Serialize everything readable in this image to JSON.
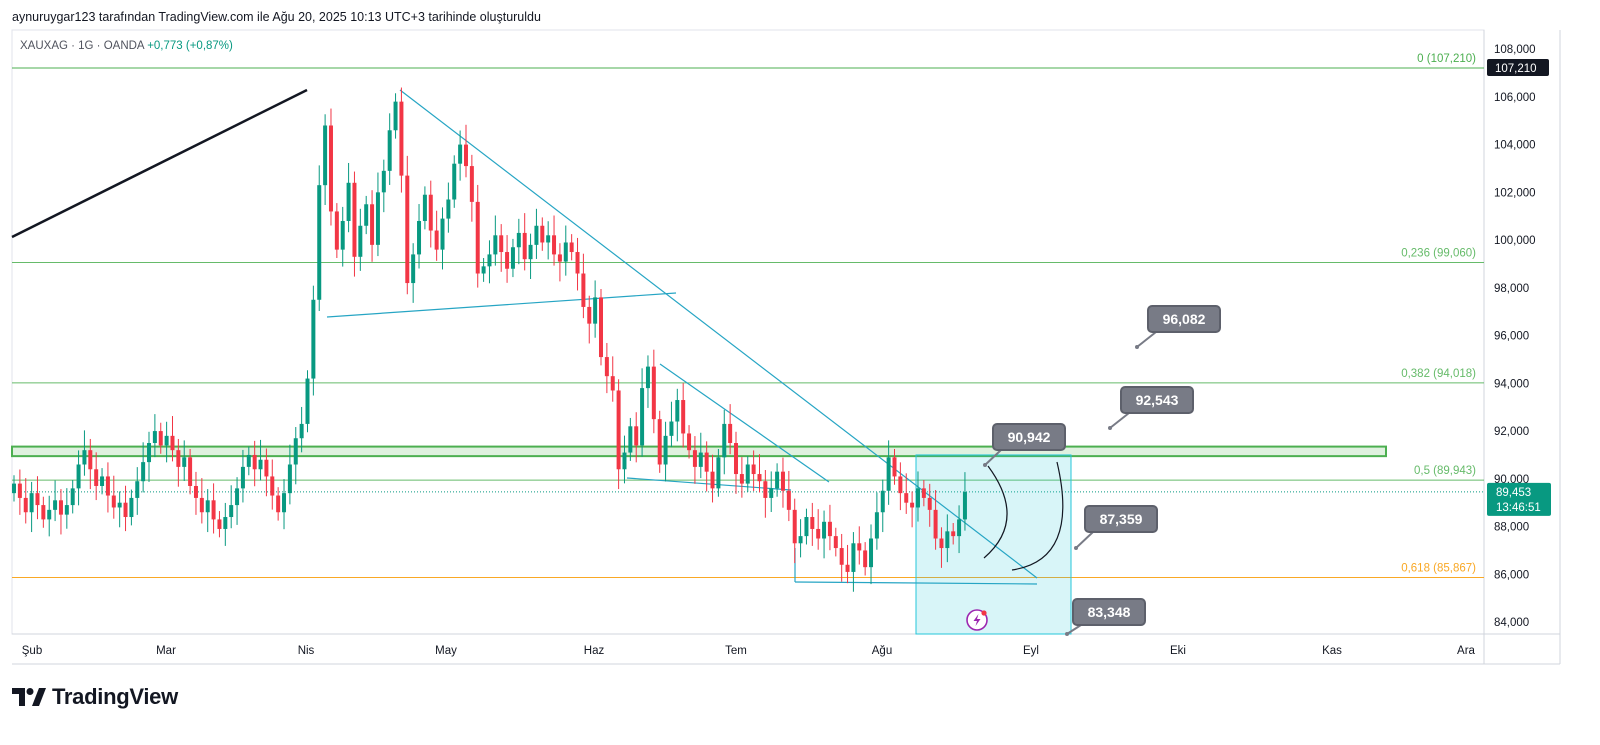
{
  "header": {
    "attribution": "aynuruygar123 tarafından TradingView.com ile Ağu 20, 2025 10:13 UTC+3 tarihinde oluşturuldu"
  },
  "legend": {
    "symbol": "XAUXAG · 1G · OANDA",
    "change": "+0,773 (+0,87%)"
  },
  "brand": {
    "logo_text": "TradingView",
    "logo_glyph": "TV-mark-icon"
  },
  "price_scale": {
    "ticks": [
      "108,000",
      "106,000",
      "104,000",
      "102,000",
      "100,000",
      "98,000",
      "96,000",
      "94,000",
      "92,000",
      "90,000",
      "88,000",
      "86,000",
      "84,000"
    ],
    "current_price": "89,453",
    "countdown": "13:46:51",
    "top_label": "107,210"
  },
  "time_axis": {
    "labels": [
      "Şub",
      "Mar",
      "Nis",
      "May",
      "Haz",
      "Tem",
      "Ağu",
      "Eyl",
      "Eki",
      "Kas",
      "Ara"
    ]
  },
  "fib_levels": [
    {
      "label": "0 (107,210)",
      "value": 107.21,
      "color": "#4caf50"
    },
    {
      "label": "0,236 (99,060)",
      "value": 99.06,
      "color": "#66bb6a"
    },
    {
      "label": "0,382 (94,018)",
      "value": 94.018,
      "color": "#66bb6a"
    },
    {
      "label": "0,5 (89,943)",
      "value": 89.943,
      "color": "#66bb6a"
    },
    {
      "label": "0,618 (85,867)",
      "value": 85.867,
      "color": "#f9a825"
    }
  ],
  "callouts": [
    {
      "label": "96,082",
      "value": 96.082
    },
    {
      "label": "92,543",
      "value": 92.543
    },
    {
      "label": "90,942",
      "value": 90.942
    },
    {
      "label": "87,359",
      "value": 87.359
    },
    {
      "label": "83,348",
      "value": 83.348
    }
  ],
  "colors": {
    "up": "#089981",
    "down": "#f23645",
    "trendline": "#26a5c4",
    "support_zone": "#4caf50",
    "projection_box": "#26c6da"
  },
  "chart_data": {
    "type": "candlestick",
    "symbol": "XAUXAG",
    "ylim": [
      83.5,
      108.8
    ],
    "price_scale_position": "right",
    "x_range": [
      "Şub",
      "Ara"
    ],
    "closes": [
      89.8,
      89.2,
      88.6,
      89.4,
      88.9,
      88.3,
      88.7,
      89.1,
      88.5,
      88.9,
      89.6,
      90.6,
      91.2,
      90.4,
      89.7,
      90.1,
      89.3,
      88.8,
      89.0,
      88.4,
      89.2,
      89.9,
      90.7,
      91.5,
      92.0,
      91.4,
      91.8,
      91.2,
      90.5,
      90.9,
      89.7,
      89.2,
      88.6,
      89.1,
      88.3,
      87.9,
      88.4,
      88.9,
      89.6,
      90.5,
      91.0,
      90.4,
      90.8,
      90.1,
      89.3,
      88.6,
      89.4,
      90.6,
      91.7,
      92.3,
      94.2,
      97.5,
      102.3,
      104.8,
      101.2,
      99.6,
      100.8,
      102.4,
      99.3,
      100.6,
      101.5,
      99.8,
      102.0,
      102.9,
      104.6,
      105.8,
      102.7,
      98.2,
      99.4,
      100.8,
      101.9,
      100.4,
      99.6,
      100.9,
      101.7,
      103.2,
      104.0,
      103.1,
      101.6,
      98.6,
      98.9,
      99.4,
      100.2,
      99.5,
      98.8,
      99.7,
      100.3,
      99.2,
      99.8,
      100.6,
      99.9,
      100.2,
      99.4,
      99.1,
      99.9,
      99.5,
      98.6,
      97.2,
      96.5,
      97.6,
      95.1,
      94.3,
      93.7,
      90.4,
      91.1,
      92.2,
      91.4,
      93.8,
      94.7,
      92.5,
      90.6,
      91.8,
      92.4,
      93.3,
      91.9,
      91.2,
      90.5,
      91.1,
      90.3,
      89.6,
      90.9,
      92.3,
      91.5,
      90.2,
      89.8,
      90.6,
      90.2,
      89.9,
      89.2,
      89.6,
      90.3,
      89.5,
      88.7,
      87.3,
      87.6,
      88.4,
      87.9,
      87.5,
      88.2,
      87.6,
      87.1,
      86.4,
      86.1,
      87.3,
      87.0,
      86.3,
      87.5,
      88.6,
      89.5,
      90.9,
      90.1,
      89.4,
      89.0,
      88.8,
      89.6,
      89.2,
      88.7,
      87.5,
      87.1,
      87.8,
      87.6,
      88.3,
      89.45
    ],
    "series": []
  }
}
